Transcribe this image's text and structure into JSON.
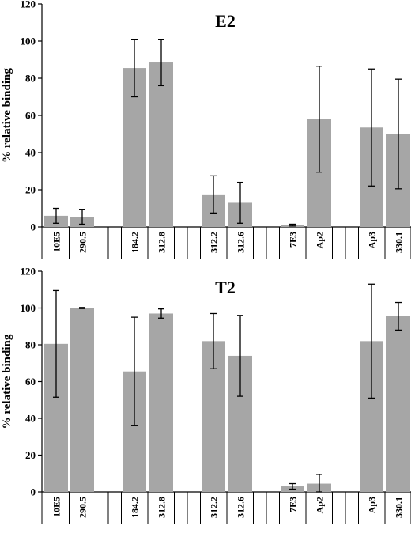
{
  "chart_data": [
    {
      "type": "bar",
      "title": "E2",
      "ylabel": "% relative binding",
      "ylim": [
        0,
        120
      ],
      "yticks": [
        0,
        20,
        40,
        60,
        80,
        100,
        120
      ],
      "categories": [
        "10E5",
        "290.5",
        "184.2",
        "312.8",
        "312.2",
        "312.6",
        "7E3",
        "Ap2",
        "Ap3",
        "330.1"
      ],
      "groups": [
        [
          0,
          1
        ],
        [
          2,
          3
        ],
        [
          4,
          5
        ],
        [
          6,
          7
        ],
        [
          8,
          9
        ]
      ],
      "values": [
        6,
        5.5,
        85.5,
        88.5,
        17.5,
        13,
        1,
        58,
        53.5,
        50
      ],
      "error": [
        4,
        4,
        15.5,
        12.5,
        10,
        11,
        0.5,
        28.5,
        31.5,
        29.5
      ],
      "bar_color": "#a6a6a6",
      "error_color": "#000000"
    },
    {
      "type": "bar",
      "title": "T2",
      "ylabel": "% relative binding",
      "ylim": [
        0,
        120
      ],
      "yticks": [
        0,
        20,
        40,
        60,
        80,
        100,
        120
      ],
      "categories": [
        "10E5",
        "290.5",
        "184.2",
        "312.8",
        "312.2",
        "312.6",
        "7E3",
        "Ap2",
        "Ap3",
        "330.1"
      ],
      "groups": [
        [
          0,
          1
        ],
        [
          2,
          3
        ],
        [
          4,
          5
        ],
        [
          6,
          7
        ],
        [
          8,
          9
        ]
      ],
      "values": [
        80.5,
        100,
        65.5,
        97,
        82,
        74,
        3,
        4.5,
        82,
        95.5
      ],
      "error": [
        29,
        0.3,
        29.5,
        2.5,
        15,
        22,
        1.5,
        5,
        31,
        7.5
      ],
      "bar_color": "#a6a6a6",
      "error_color": "#000000"
    }
  ]
}
